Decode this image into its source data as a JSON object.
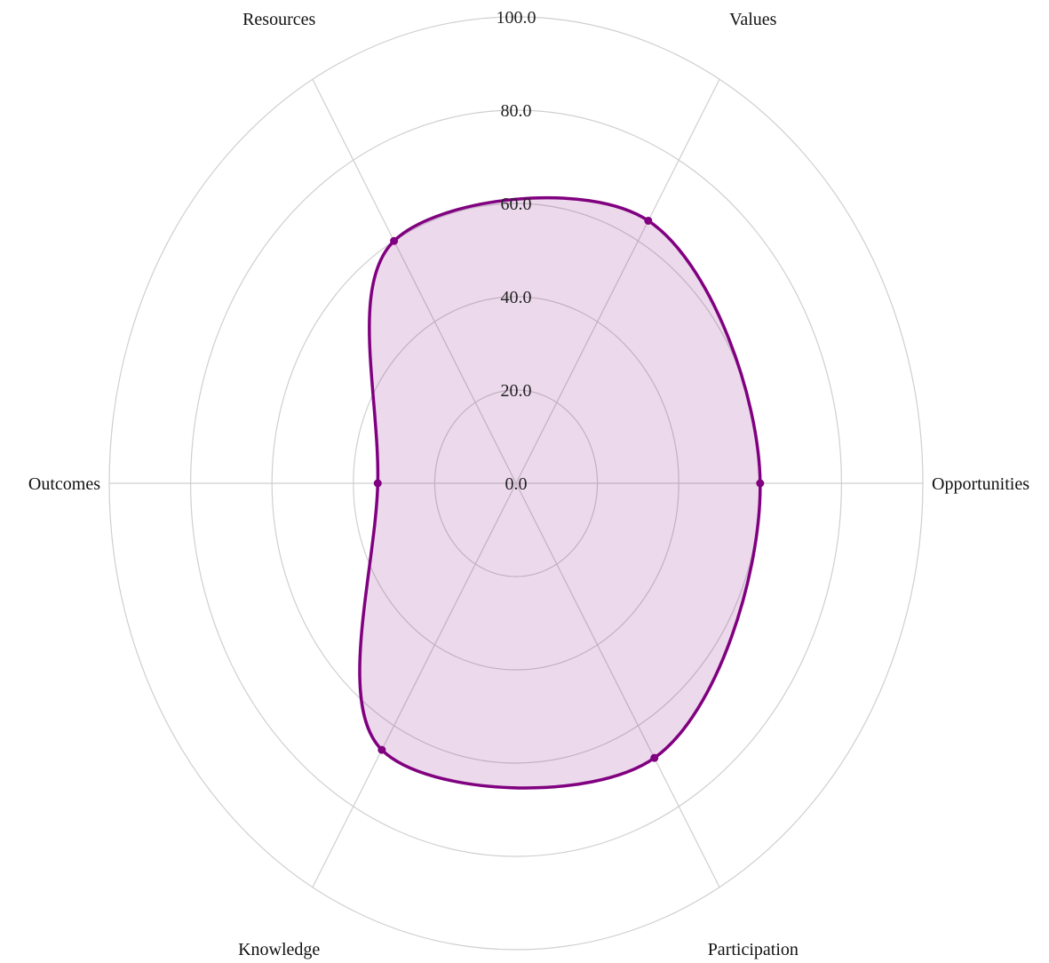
{
  "chart_data": {
    "type": "radar",
    "axes": [
      "Opportunities",
      "Values",
      "Resources",
      "Outcomes",
      "Knowledge",
      "Participation"
    ],
    "series": [
      {
        "values": [
          60,
          65,
          60,
          34,
          66,
          68
        ],
        "color": "#800080",
        "fill": "#800080",
        "fill_opacity": 0.15
      }
    ],
    "ticks": [
      "0.0",
      "20.0",
      "40.0",
      "60.0",
      "80.0",
      "100.0"
    ],
    "range": [
      0,
      100
    ],
    "interpolation": "smooth",
    "grid": true
  }
}
